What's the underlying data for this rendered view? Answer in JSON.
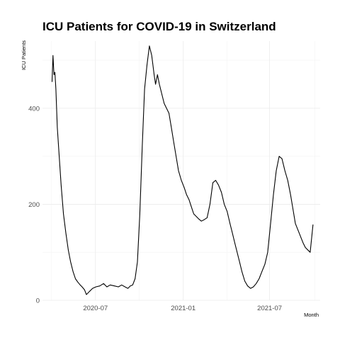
{
  "chart_data": {
    "type": "line",
    "title": "ICU Patients for COVID-19 in Switzerland",
    "xlabel": "Month",
    "ylabel": "ICU Patients",
    "x_ticks": [
      "2020-07",
      "2021-01",
      "2021-07"
    ],
    "y_ticks": [
      0,
      200,
      400
    ],
    "xlim": [
      "2020-03-12",
      "2021-10-15"
    ],
    "ylim": [
      0,
      540
    ],
    "grid": true,
    "series": [
      {
        "x": [
          "2020-04-01",
          "2020-04-03",
          "2020-04-05",
          "2020-04-07",
          "2020-04-09",
          "2020-04-12",
          "2020-04-16",
          "2020-04-20",
          "2020-04-25",
          "2020-04-30",
          "2020-05-05",
          "2020-05-10",
          "2020-05-15",
          "2020-05-20",
          "2020-05-25",
          "2020-05-30",
          "2020-06-03",
          "2020-06-08",
          "2020-06-12",
          "2020-06-18",
          "2020-06-25",
          "2020-07-02",
          "2020-07-10",
          "2020-07-18",
          "2020-07-25",
          "2020-08-01",
          "2020-08-10",
          "2020-08-18",
          "2020-08-25",
          "2020-09-01",
          "2020-09-07",
          "2020-09-12",
          "2020-09-17",
          "2020-09-22",
          "2020-09-27",
          "2020-10-02",
          "2020-10-07",
          "2020-10-12",
          "2020-10-17",
          "2020-10-22",
          "2020-10-27",
          "2020-11-01",
          "2020-11-04",
          "2020-11-08",
          "2020-11-12",
          "2020-11-17",
          "2020-11-22",
          "2020-11-27",
          "2020-12-02",
          "2020-12-07",
          "2020-12-12",
          "2020-12-17",
          "2020-12-22",
          "2020-12-28",
          "2021-01-03",
          "2021-01-08",
          "2021-01-13",
          "2021-01-18",
          "2021-01-23",
          "2021-01-28",
          "2021-02-02",
          "2021-02-08",
          "2021-02-14",
          "2021-02-20",
          "2021-02-26",
          "2021-03-04",
          "2021-03-10",
          "2021-03-16",
          "2021-03-22",
          "2021-03-28",
          "2021-04-03",
          "2021-04-09",
          "2021-04-14",
          "2021-04-19",
          "2021-04-24",
          "2021-04-29",
          "2021-05-04",
          "2021-05-10",
          "2021-05-16",
          "2021-05-22",
          "2021-05-28",
          "2021-06-03",
          "2021-06-09",
          "2021-06-15",
          "2021-06-21",
          "2021-06-27",
          "2021-07-03",
          "2021-07-09",
          "2021-07-15",
          "2021-07-21",
          "2021-07-27",
          "2021-08-02",
          "2021-08-08",
          "2021-08-14",
          "2021-08-19",
          "2021-08-24",
          "2021-08-28",
          "2021-09-01",
          "2021-09-05",
          "2021-09-09",
          "2021-09-14",
          "2021-09-19",
          "2021-09-24",
          "2021-09-30"
        ],
        "y": [
          455,
          510,
          470,
          475,
          440,
          360,
          300,
          240,
          180,
          140,
          105,
          80,
          60,
          45,
          38,
          32,
          28,
          22,
          12,
          18,
          25,
          28,
          30,
          35,
          28,
          32,
          30,
          28,
          32,
          28,
          25,
          30,
          32,
          45,
          80,
          180,
          320,
          440,
          490,
          530,
          510,
          470,
          450,
          470,
          450,
          430,
          410,
          400,
          390,
          360,
          330,
          300,
          270,
          250,
          235,
          220,
          210,
          195,
          180,
          175,
          170,
          165,
          168,
          172,
          200,
          245,
          250,
          240,
          225,
          200,
          185,
          160,
          140,
          120,
          100,
          80,
          60,
          40,
          30,
          25,
          28,
          35,
          45,
          60,
          75,
          100,
          160,
          220,
          270,
          300,
          295,
          270,
          250,
          220,
          190,
          160,
          150,
          140,
          130,
          120,
          110,
          105,
          100,
          158
        ]
      }
    ]
  }
}
